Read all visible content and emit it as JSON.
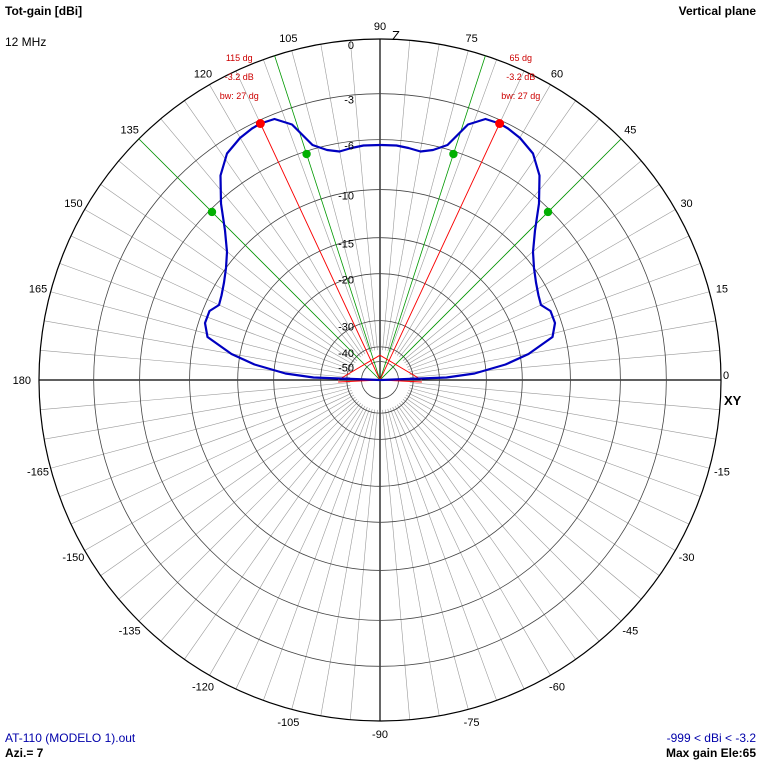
{
  "header": {
    "title": "Tot-gain [dBi]",
    "frequency": "12 MHz",
    "plane": "Vertical plane"
  },
  "footer": {
    "file": "AT-110 (MODELO 1).out",
    "azimuth": "Azi.= 7",
    "gain_range": "-999 < dBi < -3.2",
    "max_gain": "Max gain Ele:65"
  },
  "axis_labels": {
    "zenith": "Z",
    "horizontal": "XY"
  },
  "colors": {
    "pattern": "#0000c0",
    "lobe_line": "#ff0000",
    "beamwidth_line": "#009900",
    "grid": "#000000"
  },
  "chart_data": {
    "type": "polar",
    "title": "Tot-gain [dBi]",
    "angle_ticks": [
      0,
      15,
      30,
      45,
      60,
      75,
      90,
      105,
      120,
      135,
      150,
      165,
      180,
      -165,
      -150,
      -135,
      -120,
      -105,
      -90,
      -75,
      -60,
      -45,
      -30,
      -15
    ],
    "gain_ticks": [
      "0",
      "-3",
      "-6",
      "-10",
      "-15",
      "-20",
      "-30",
      "-40",
      "-50"
    ],
    "gain_tick_values": [
      0,
      -3,
      -6,
      -10,
      -15,
      -20,
      -30,
      -40,
      -50
    ],
    "pattern": {
      "elevation_deg": [
        0,
        2,
        4,
        7,
        10,
        14,
        18,
        22,
        25,
        28,
        32,
        36,
        40,
        44,
        48,
        52,
        56,
        60,
        63,
        65,
        68,
        71,
        74,
        77,
        80,
        83,
        86,
        90
      ],
      "gain_dbi": [
        -999,
        -28,
        -22,
        -17,
        -14,
        -11.2,
        -10.6,
        -10.6,
        -11.2,
        -11,
        -10.6,
        -10,
        -9.2,
        -7.9,
        -6.2,
        -4.7,
        -3.8,
        -3.4,
        -3.25,
        -3.2,
        -3.3,
        -4,
        -5.7,
        -6.3,
        -6.6,
        -6.5,
        -6.4,
        -6.4
      ]
    },
    "lobes": [
      {
        "angle": 65,
        "label_angle": "65 dg",
        "label_gain": "-3.2 dB",
        "label_bw": "bw: 27 dg"
      },
      {
        "angle": 115,
        "label_angle": "115 dg",
        "label_gain": "-3.2 dB",
        "label_bw": "bw: 27 dg"
      }
    ],
    "beamwidth_points": [
      {
        "angle": 45,
        "gain": -6.2
      },
      {
        "angle": 72,
        "gain": -6.2
      },
      {
        "angle": 108,
        "gain": -6.2
      },
      {
        "angle": 135,
        "gain": -6.2
      }
    ]
  }
}
